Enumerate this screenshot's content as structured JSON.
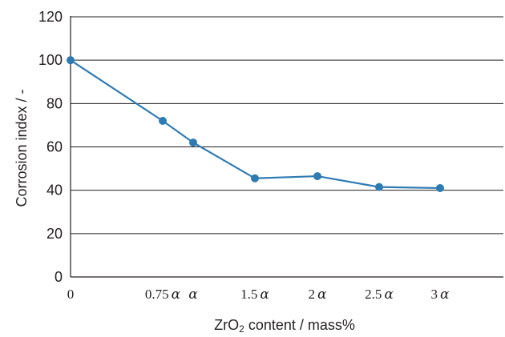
{
  "chart_data": {
    "type": "line",
    "x_ticks": [
      "0",
      "0.75α",
      "α",
      "1.5α",
      "2α",
      "2.5α",
      "3α"
    ],
    "series": [
      {
        "values": [
          100,
          72,
          62,
          45.5,
          46.5,
          41.5,
          41
        ]
      }
    ],
    "ylabel": "Corrosion index / -",
    "xlabel": {
      "prefix": "ZrO",
      "subscript": "2",
      "suffix": " content / mass%"
    },
    "y_ticks": [
      0,
      20,
      40,
      60,
      80,
      100,
      120
    ],
    "ylim": [
      0,
      120
    ],
    "grid": "horizontal",
    "legend": "none",
    "colors": {
      "line": "#2e7bb4",
      "marker": "#2e7bb4",
      "grid": "#231f20",
      "axis": "#231f20"
    }
  }
}
